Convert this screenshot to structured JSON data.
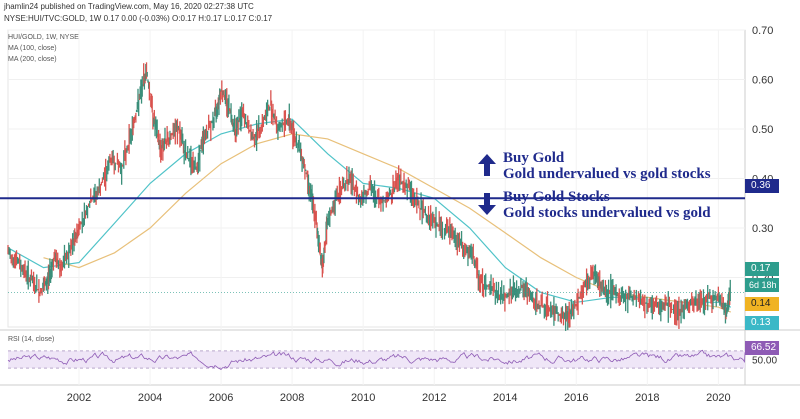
{
  "header": {
    "published": "jhamlin24 published on TradingView.com, May 16, 2020 02:27:38 UTC",
    "symbol_line": "NYSE:HUI/TVC:GOLD, 1W 0.17 0.00 (-0.03%) O:0.17 H:0.17 L:0.17 C:0.17",
    "title": "HUI/GOLD, 1W, NYSE",
    "ma100": "MA (100, close)",
    "ma200": "MA (200, close)",
    "rsi": "RSI (14, close)"
  },
  "annotations": {
    "buy_gold": "Buy Gold",
    "buy_gold_sub": "Gold undervalued vs gold stocks",
    "buy_stocks": "Buy Gold Stocks",
    "buy_stocks_sub": "Gold stocks undervalued vs gold"
  },
  "price_tags": {
    "level": "0.36",
    "last": "0.17",
    "countdown": "6d 18h",
    "ma100": "0.14",
    "ma200": "0.13",
    "rsi": "66.52"
  },
  "colors": {
    "price": "#d9534f",
    "price_up": "#3b8f7a",
    "ma100": "#4fc3c8",
    "ma200": "#e8c07a",
    "level_line": "#1f2a8c",
    "rsi_line": "#8e5bb5",
    "rsi_band": "#efe6f7",
    "tag_last": "#2e9d8d",
    "tag_ma100": "#f0b323",
    "tag_ma200": "#3bb8c7"
  },
  "chart_data": {
    "type": "line",
    "title": "HUI/GOLD, 1W, NYSE",
    "x_ticks": [
      "2002",
      "2004",
      "2006",
      "2008",
      "2010",
      "2012",
      "2014",
      "2016",
      "2018",
      "2020"
    ],
    "y_ticks": [
      "0.70",
      "0.60",
      "0.50",
      "0.40",
      "0.30",
      "0.20"
    ],
    "ylim": [
      0.1,
      0.7
    ],
    "xlim": [
      2000.0,
      2020.75
    ],
    "horizontal_line": 0.36,
    "series": [
      {
        "name": "HUI/GOLD",
        "x": [
          2000.0,
          2000.3,
          2000.6,
          2000.9,
          2001.1,
          2001.3,
          2001.5,
          2001.8,
          2002.0,
          2002.3,
          2002.6,
          2002.9,
          2003.2,
          2003.5,
          2003.7,
          2003.9,
          2004.1,
          2004.3,
          2004.5,
          2004.8,
          2005.0,
          2005.3,
          2005.5,
          2005.8,
          2006.0,
          2006.2,
          2006.4,
          2006.6,
          2006.9,
          2007.1,
          2007.4,
          2007.6,
          2007.9,
          2008.1,
          2008.3,
          2008.5,
          2008.7,
          2008.85,
          2009.0,
          2009.3,
          2009.6,
          2009.9,
          2010.2,
          2010.5,
          2010.8,
          2011.0,
          2011.3,
          2011.6,
          2011.9,
          2012.2,
          2012.5,
          2012.8,
          2013.1,
          2013.3,
          2013.6,
          2013.9,
          2014.2,
          2014.5,
          2014.8,
          2015.1,
          2015.4,
          2015.7,
          2015.9,
          2016.2,
          2016.5,
          2016.7,
          2017.0,
          2017.3,
          2017.6,
          2017.9,
          2018.2,
          2018.5,
          2018.8,
          2019.1,
          2019.4,
          2019.7,
          2020.0,
          2020.2,
          2020.35
        ],
        "y": [
          0.25,
          0.23,
          0.2,
          0.17,
          0.19,
          0.24,
          0.22,
          0.26,
          0.3,
          0.35,
          0.38,
          0.44,
          0.42,
          0.5,
          0.56,
          0.62,
          0.52,
          0.46,
          0.48,
          0.5,
          0.45,
          0.42,
          0.48,
          0.52,
          0.58,
          0.55,
          0.5,
          0.53,
          0.48,
          0.5,
          0.55,
          0.5,
          0.52,
          0.48,
          0.44,
          0.38,
          0.3,
          0.22,
          0.31,
          0.37,
          0.4,
          0.36,
          0.38,
          0.35,
          0.37,
          0.4,
          0.38,
          0.34,
          0.32,
          0.3,
          0.29,
          0.26,
          0.24,
          0.19,
          0.18,
          0.16,
          0.17,
          0.18,
          0.15,
          0.14,
          0.13,
          0.12,
          0.13,
          0.18,
          0.21,
          0.18,
          0.17,
          0.16,
          0.16,
          0.15,
          0.14,
          0.15,
          0.13,
          0.14,
          0.15,
          0.16,
          0.16,
          0.13,
          0.17
        ]
      },
      {
        "name": "MA (100, close)",
        "x": [
          2000.0,
          2001.0,
          2002.0,
          2003.0,
          2004.0,
          2005.0,
          2006.0,
          2007.0,
          2008.0,
          2009.0,
          2010.0,
          2011.0,
          2012.0,
          2013.0,
          2014.0,
          2015.0,
          2016.0,
          2017.0,
          2018.0,
          2019.0,
          2020.0,
          2020.35
        ],
        "y": [
          0.26,
          0.22,
          0.23,
          0.31,
          0.39,
          0.45,
          0.49,
          0.51,
          0.52,
          0.45,
          0.39,
          0.38,
          0.36,
          0.3,
          0.22,
          0.17,
          0.15,
          0.16,
          0.16,
          0.15,
          0.15,
          0.14
        ]
      },
      {
        "name": "MA (200, close)",
        "x": [
          2001.0,
          2002.0,
          2003.0,
          2004.0,
          2005.0,
          2006.0,
          2007.0,
          2008.0,
          2009.0,
          2010.0,
          2011.0,
          2012.0,
          2013.0,
          2014.0,
          2015.0,
          2016.0,
          2017.0,
          2018.0,
          2019.0,
          2020.0,
          2020.35
        ],
        "y": [
          0.24,
          0.22,
          0.25,
          0.3,
          0.37,
          0.43,
          0.47,
          0.49,
          0.48,
          0.45,
          0.42,
          0.38,
          0.34,
          0.29,
          0.24,
          0.2,
          0.17,
          0.16,
          0.15,
          0.14,
          0.13
        ]
      }
    ],
    "rsi": {
      "name": "RSI (14, close)",
      "tick": "50.00",
      "last": 66.52
    }
  }
}
